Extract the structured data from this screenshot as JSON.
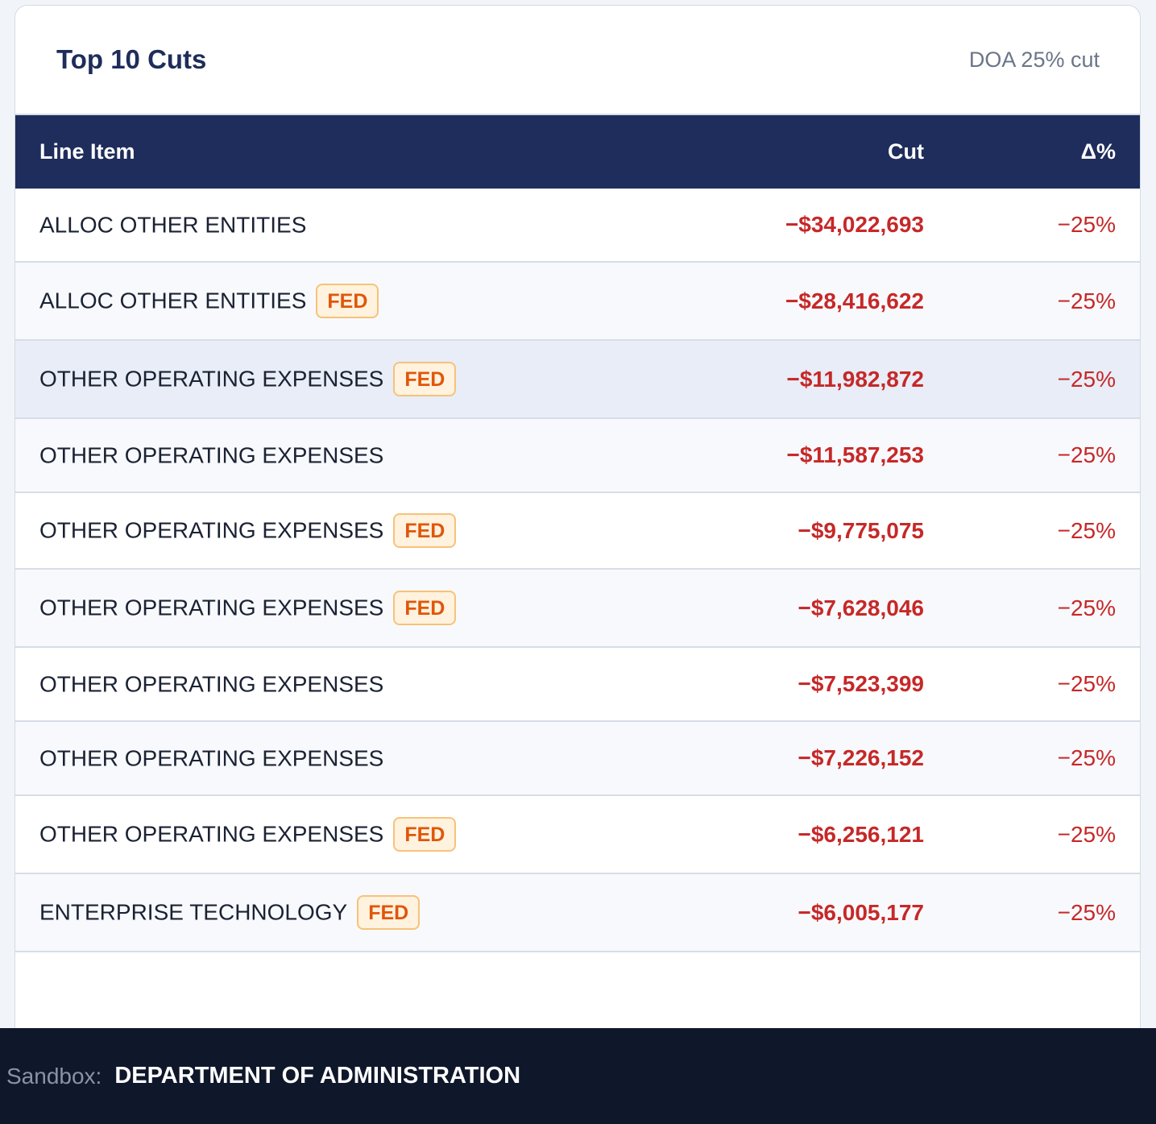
{
  "card": {
    "title": "Top 10 Cuts",
    "subtitle": "DOA 25% cut"
  },
  "table": {
    "columns": {
      "item": "Line Item",
      "cut": "Cut",
      "pct": "Δ%"
    },
    "rows": [
      {
        "item": "ALLOC OTHER ENTITIES",
        "badge": "",
        "cut": "−$34,022,693",
        "pct": "−25%"
      },
      {
        "item": "ALLOC OTHER ENTITIES",
        "badge": "FED",
        "cut": "−$28,416,622",
        "pct": "−25%"
      },
      {
        "item": "OTHER OPERATING EXPENSES",
        "badge": "FED",
        "cut": "−$11,982,872",
        "pct": "−25%",
        "highlighted": true
      },
      {
        "item": "OTHER OPERATING EXPENSES",
        "badge": "",
        "cut": "−$11,587,253",
        "pct": "−25%"
      },
      {
        "item": "OTHER OPERATING EXPENSES",
        "badge": "FED",
        "cut": "−$9,775,075",
        "pct": "−25%"
      },
      {
        "item": "OTHER OPERATING EXPENSES",
        "badge": "FED",
        "cut": "−$7,628,046",
        "pct": "−25%"
      },
      {
        "item": "OTHER OPERATING EXPENSES",
        "badge": "",
        "cut": "−$7,523,399",
        "pct": "−25%"
      },
      {
        "item": "OTHER OPERATING EXPENSES",
        "badge": "",
        "cut": "−$7,226,152",
        "pct": "−25%"
      },
      {
        "item": "OTHER OPERATING EXPENSES",
        "badge": "FED",
        "cut": "−$6,256,121",
        "pct": "−25%"
      },
      {
        "item": "ENTERPRISE TECHNOLOGY",
        "badge": "FED",
        "cut": "−$6,005,177",
        "pct": "−25%"
      }
    ]
  },
  "footer": {
    "label": "Sandbox:",
    "value": "DEPARTMENT OF ADMINISTRATION"
  },
  "colors": {
    "header_bg": "#1e2d5b",
    "negative": "#c62828",
    "badge_text": "#e0560a",
    "badge_bg": "#fff2de",
    "footer_bg": "#0f172a"
  }
}
